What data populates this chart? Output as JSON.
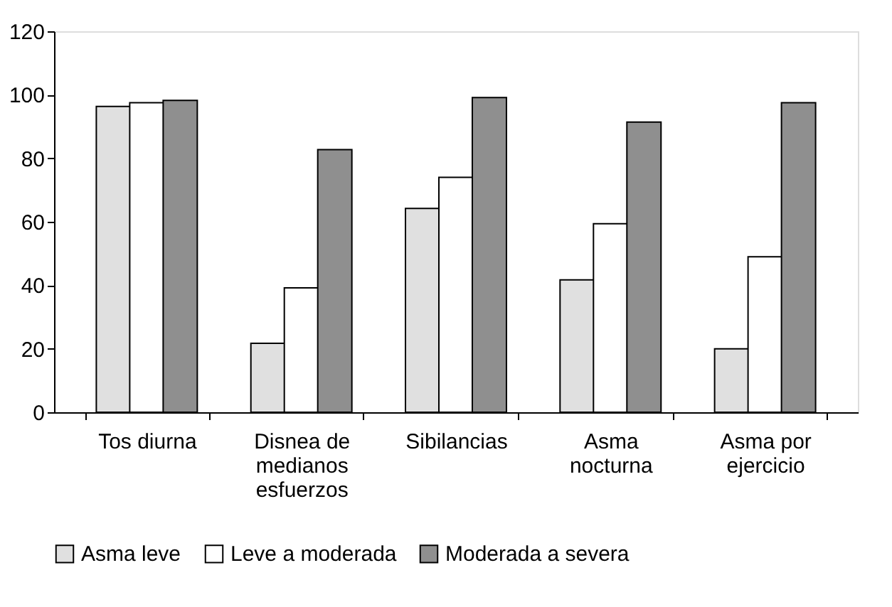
{
  "chart_data": {
    "type": "bar",
    "categories": [
      "Tos diurna",
      "Disnea de medianos esfuerzos",
      "Sibilancias",
      "Asma nocturna",
      "Asma por ejercicio"
    ],
    "series": [
      {
        "name": "Asma leve",
        "color": "#e0e0e0",
        "values": [
          96.3,
          21.7,
          64.2,
          41.7,
          20
        ]
      },
      {
        "name": "Leve a moderada",
        "color": "#ffffff",
        "values": [
          97.5,
          39.2,
          74,
          59.4,
          49
        ]
      },
      {
        "name": "Moderada a severa",
        "color": "#8f8f8f",
        "values": [
          98.2,
          82.7,
          99.1,
          91.4,
          97.5
        ]
      }
    ],
    "ylim": [
      0,
      120
    ],
    "yticks": [
      0,
      20,
      40,
      60,
      80,
      100,
      120
    ],
    "grid": false,
    "legend": "bottom"
  }
}
